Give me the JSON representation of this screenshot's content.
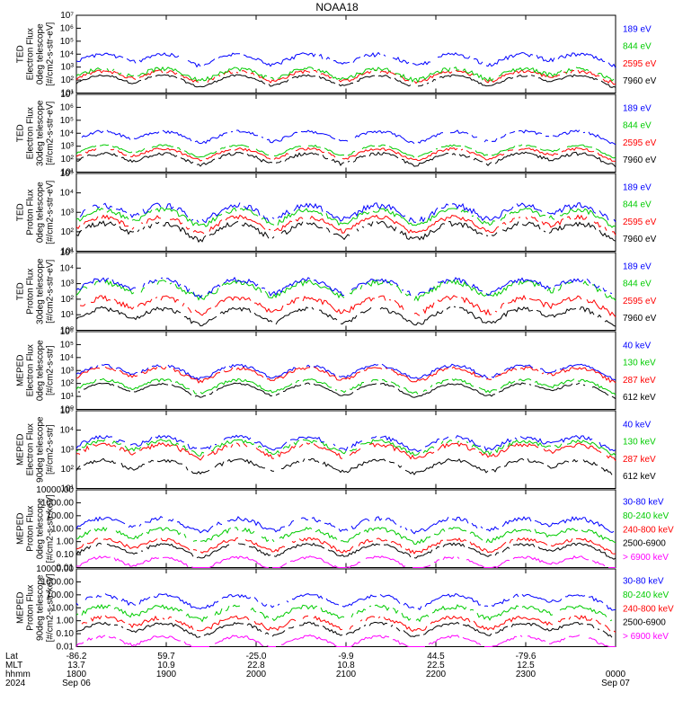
{
  "title": "NOAA18",
  "chart_data": [
    {
      "type": "line",
      "ylabel": [
        "TED",
        "Electron Flux",
        "0deg telescope",
        "[#/cm2-s-str-eV]"
      ],
      "yscale": "log",
      "ylim": [
        1,
        10000000
      ],
      "yticks": [
        "10¹",
        "10²",
        "10³",
        "10⁴",
        "10⁵",
        "10⁶",
        "10⁷"
      ],
      "series": [
        {
          "name": "7960 eV",
          "color": "#000000",
          "base": 12,
          "var": 5
        },
        {
          "name": "2595 eV",
          "color": "#ff0000",
          "base": 30,
          "var": 20
        },
        {
          "name": "844 eV",
          "color": "#00cc00",
          "base": 50,
          "var": 40
        },
        {
          "name": "189 eV",
          "color": "#0000ff",
          "base": 1000,
          "var": 800
        }
      ]
    },
    {
      "type": "line",
      "ylabel": [
        "TED",
        "Electron Flux",
        "30deg telescope",
        "[#/cm2-s-str-eV]"
      ],
      "yscale": "log",
      "ylim": [
        1,
        10000000
      ],
      "yticks": [
        "10¹",
        "10²",
        "10³",
        "10⁴",
        "10⁵",
        "10⁶",
        "10⁷"
      ],
      "series": [
        {
          "name": "7960 eV",
          "color": "#000000",
          "base": 15,
          "var": 10
        },
        {
          "name": "2595 eV",
          "color": "#ff0000",
          "base": 40,
          "var": 20
        },
        {
          "name": "844 eV",
          "color": "#00cc00",
          "base": 80,
          "var": 30
        },
        {
          "name": "189 eV",
          "color": "#0000ff",
          "base": 1500,
          "var": 900
        }
      ]
    },
    {
      "type": "line",
      "ylabel": [
        "TED",
        "Proton Flux",
        "0deg telescope",
        "[#/cm2-s-str-eV]"
      ],
      "yscale": "log",
      "ylim": [
        1,
        100000
      ],
      "yticks": [
        "10¹",
        "10²",
        "10³",
        "10⁴",
        "10⁵"
      ],
      "series": [
        {
          "name": "7960 eV",
          "color": "#000000",
          "base": 20,
          "var": 15
        },
        {
          "name": "2595 eV",
          "color": "#ff0000",
          "base": 50,
          "var": 30
        },
        {
          "name": "844 eV",
          "color": "#00cc00",
          "base": 150,
          "var": 100
        },
        {
          "name": "189 eV",
          "color": "#0000ff",
          "base": 300,
          "var": 250
        }
      ]
    },
    {
      "type": "line",
      "ylabel": [
        "TED",
        "Proton Flux",
        "30deg telescope",
        "[#/cm2-s-str-eV]"
      ],
      "yscale": "log",
      "ylim": [
        1,
        100000
      ],
      "yticks": [
        "10⁰",
        "10¹",
        "10²",
        "10³",
        "10⁴",
        "10⁵"
      ],
      "series": [
        {
          "name": "7960 eV",
          "color": "#000000",
          "base": 8,
          "var": 5
        },
        {
          "name": "2595 eV",
          "color": "#ff0000",
          "base": 40,
          "var": 30
        },
        {
          "name": "844 eV",
          "color": "#00cc00",
          "base": 400,
          "var": 300
        },
        {
          "name": "189 eV",
          "color": "#0000ff",
          "base": 600,
          "var": 400
        }
      ]
    },
    {
      "type": "line",
      "ylabel": [
        "MEPED",
        "Electron Flux",
        "0deg telescope",
        "[#/cm2-s-str]"
      ],
      "yscale": "log",
      "ylim": [
        1,
        1000000
      ],
      "yticks": [
        "10⁰",
        "10¹",
        "10²",
        "10³",
        "10⁴",
        "10⁵",
        "10⁶"
      ],
      "series": [
        {
          "name": "612 keV",
          "color": "#000000",
          "base": 30,
          "var": 10
        },
        {
          "name": "287 keV",
          "color": "#ff0000",
          "base": 500,
          "var": 300
        },
        {
          "name": "130 keV",
          "color": "#00cc00",
          "base": 60,
          "var": 30
        },
        {
          "name": "40 keV",
          "color": "#0000ff",
          "base": 800,
          "var": 400
        }
      ]
    },
    {
      "type": "line",
      "ylabel": [
        "MEPED",
        "Electron Flux",
        "90deg telescope",
        "[#/cm2-s-str]"
      ],
      "yscale": "log",
      "ylim": [
        1,
        1000000
      ],
      "yticks": [
        "10¹",
        "10²",
        "10³",
        "10⁴",
        "10⁵"
      ],
      "series": [
        {
          "name": "612 keV",
          "color": "#000000",
          "base": 50,
          "var": 30
        },
        {
          "name": "287 keV",
          "color": "#ff0000",
          "base": 800,
          "var": 600
        },
        {
          "name": "130 keV",
          "color": "#00cc00",
          "base": 1500,
          "var": 1000
        },
        {
          "name": "40 keV",
          "color": "#0000ff",
          "base": 3000,
          "var": 2000
        }
      ]
    },
    {
      "type": "line",
      "ylabel": [
        "MEPED",
        "Proton Flux",
        "0deg telescope",
        "[#/cm2-s-str-keV]"
      ],
      "yscale": "log",
      "ylim": [
        0.01,
        10000
      ],
      "yticks": [
        "0.01",
        "0.10",
        "1.00",
        "10.00",
        "100.00",
        "1000.00",
        "10000.00"
      ],
      "series": [
        {
          "name": "> 6900 keV",
          "color": "#ff00ff",
          "base": 0.02,
          "var": 0.01
        },
        {
          "name": "2500-6900",
          "color": "#000000",
          "base": 0.2,
          "var": 0.1
        },
        {
          "name": "240-800 keV",
          "color": "#ff0000",
          "base": 0.5,
          "var": 0.3
        },
        {
          "name": "80-240 keV",
          "color": "#00cc00",
          "base": 3,
          "var": 2
        },
        {
          "name": "30-80 keV",
          "color": "#0000ff",
          "base": 20,
          "var": 15
        }
      ]
    },
    {
      "type": "line",
      "ylabel": [
        "MEPED",
        "Proton Flux",
        "90deg telescope",
        "[#/cm2-s-str-keV]"
      ],
      "yscale": "log",
      "ylim": [
        0.01,
        10000
      ],
      "yticks": [
        "0.01",
        "0.10",
        "1.00",
        "10.00",
        "100.00",
        "1000.00",
        "10000.00"
      ],
      "series": [
        {
          "name": "> 6900 keV",
          "color": "#ff00ff",
          "base": 0.02,
          "var": 0.01
        },
        {
          "name": "2500-6900",
          "color": "#000000",
          "base": 0.2,
          "var": 0.1
        },
        {
          "name": "240-800 keV",
          "color": "#ff0000",
          "base": 0.6,
          "var": 0.4
        },
        {
          "name": "80-240 keV",
          "color": "#00cc00",
          "base": 4,
          "var": 3
        },
        {
          "name": "30-80 keV",
          "color": "#0000ff",
          "base": 30,
          "var": 20
        }
      ]
    }
  ],
  "footer": {
    "rows": [
      "Lat",
      "MLT",
      "hhmm",
      "2024"
    ],
    "columns": [
      {
        "lat": "-86.2",
        "mlt": "13.7",
        "hhmm": "1800",
        "date": "Sep 06"
      },
      {
        "lat": "59.7",
        "mlt": "10.9",
        "hhmm": "1900",
        "date": ""
      },
      {
        "lat": "-25.0",
        "mlt": "22.8",
        "hhmm": "2000",
        "date": ""
      },
      {
        "lat": "-9.9",
        "mlt": "10.8",
        "hhmm": "2100",
        "date": ""
      },
      {
        "lat": "44.5",
        "mlt": "22.5",
        "hhmm": "2200",
        "date": ""
      },
      {
        "lat": "-79.6",
        "mlt": "12.5",
        "hhmm": "2300",
        "date": ""
      },
      {
        "lat": "",
        "mlt": "",
        "hhmm": "0000",
        "date": "Sep 07"
      }
    ]
  }
}
